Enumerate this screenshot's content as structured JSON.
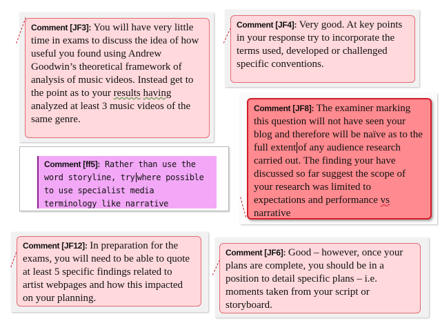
{
  "comments": {
    "jf3": {
      "label": "Comment [JF3]:",
      "text_a": " You will have very little time in exams to discuss the idea of how useful you found using Andrew Goodwin’s theoretical framework of analysis of music videos. Instead get to the point as to your ",
      "text_squiggle_a": "results",
      "text_mid": "  ",
      "text_squiggle_b": "having",
      "text_b": " analyzed at least 3 music videos of the same genre."
    },
    "jf4": {
      "label": "Comment [JF4]:",
      "text": " Very good. At key points in your response try to incorporate the terms used, developed or challenged specific conventions."
    },
    "jf8": {
      "label": "Comment [JF8]:",
      "text_a": " The examiner marking this question will not have seen your blog and therefore will be naïve as to the full extent",
      "text_b": "of any audience research carried out. The finding your have discussed so far suggest the scope of your research was limited to expectations and performance ",
      "text_squiggle": "vs",
      "text_c": " narrative"
    },
    "ff5": {
      "label": "Comment [ff5]:",
      "text_a": " Rather than use the word storyline, try",
      "text_b": "where possible to use specialist media terminology like narrative"
    },
    "jf12": {
      "label": "Comment [JF12]:",
      "text": " In preparation for the exams, you will need to be able to quote at least 5 specific findings related to artist webpages and how this impacted on your planning."
    },
    "jf6": {
      "label": "Comment [JF6]:",
      "text": " Good – however, once your plans are complete, you should be in a position to detail specific plans – i.e. moments taken from your script or storyboard."
    }
  },
  "colors": {
    "comment_fill": "#ffd9dc",
    "comment_border": "#e26a74",
    "active_fill": "#ff8a8f",
    "active_border": "#d01a28",
    "purple_fill": "#f3a8f7"
  }
}
